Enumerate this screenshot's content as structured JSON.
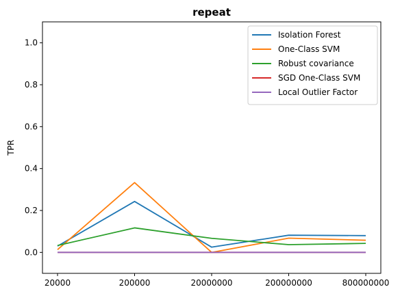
{
  "chart_data": {
    "type": "line",
    "title": "repeat",
    "xlabel": "",
    "ylabel": "TPR",
    "categories": [
      "20000",
      "200000",
      "20000000",
      "200000000",
      "800000000"
    ],
    "yticks": [
      "0.0",
      "0.2",
      "0.4",
      "0.6",
      "0.8",
      "1.0"
    ],
    "ylim": [
      -0.1,
      1.1
    ],
    "grid": false,
    "legend_position": "top-right",
    "series": [
      {
        "name": "Isolation Forest",
        "color": "#1f77b4",
        "values": [
          0.03,
          0.243,
          0.025,
          0.082,
          0.08
        ]
      },
      {
        "name": "One-Class SVM",
        "color": "#ff7f0e",
        "values": [
          0.013,
          0.333,
          0.0,
          0.068,
          0.058
        ]
      },
      {
        "name": "Robust covariance",
        "color": "#2ca02c",
        "values": [
          0.033,
          0.117,
          0.067,
          0.037,
          0.043
        ]
      },
      {
        "name": "SGD One-Class SVM",
        "color": "#d62728",
        "values": [
          0.0,
          0.0,
          0.0,
          0.0,
          0.0
        ]
      },
      {
        "name": "Local Outlier Factor",
        "color": "#9467bd",
        "values": [
          0.0,
          0.0,
          0.0,
          0.0,
          0.0
        ]
      }
    ]
  }
}
